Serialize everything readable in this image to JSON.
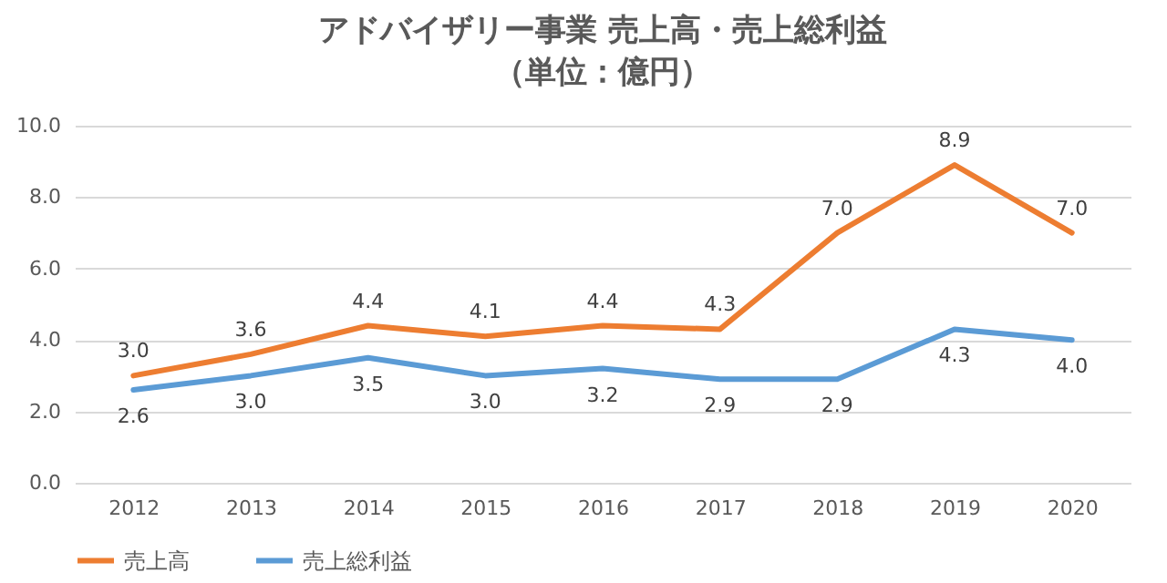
{
  "chart_data": {
    "type": "line",
    "title": "アドバイザリー事業 売上高・売上総利益",
    "subtitle": "（単位：億円）",
    "categories": [
      "2012",
      "2013",
      "2014",
      "2015",
      "2016",
      "2017",
      "2018",
      "2019",
      "2020"
    ],
    "series": [
      {
        "name": "売上高",
        "color": "#ed7d31",
        "values": [
          3.0,
          3.6,
          4.4,
          4.1,
          4.4,
          4.3,
          7.0,
          8.9,
          7.0
        ],
        "value_labels": [
          "3.0",
          "3.6",
          "4.4",
          "4.1",
          "4.4",
          "4.3",
          "7.0",
          "8.9",
          "7.0"
        ]
      },
      {
        "name": "売上総利益",
        "color": "#5b9bd5",
        "values": [
          2.6,
          3.0,
          3.5,
          3.0,
          3.2,
          2.9,
          2.9,
          4.3,
          4.0
        ],
        "value_labels": [
          "2.6",
          "3.0",
          "3.5",
          "3.0",
          "3.2",
          "2.9",
          "2.9",
          "4.3",
          "4.0"
        ]
      }
    ],
    "ylim": [
      0,
      10
    ],
    "yticks": [
      {
        "value": 0,
        "label": "0.0"
      },
      {
        "value": 2,
        "label": "2.0"
      },
      {
        "value": 4,
        "label": "4.0"
      },
      {
        "value": 6,
        "label": "6.0"
      },
      {
        "value": 8,
        "label": "8.0"
      },
      {
        "value": 10,
        "label": "10.0"
      }
    ],
    "grid": "y",
    "legend": "bottom",
    "marker": "none",
    "line_style": "solid"
  }
}
